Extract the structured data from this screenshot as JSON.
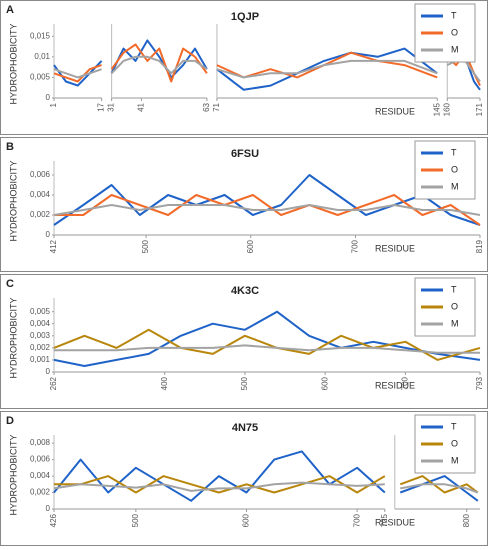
{
  "chart_data": [
    {
      "type": "line",
      "panel": "A",
      "title": "1QJP",
      "ylabel": "HYDROPHOBICITY",
      "xlabel": "RESIDUE",
      "legend": "upper right",
      "series": [
        {
          "name": "T",
          "color": "#1f63c9"
        },
        {
          "name": "O",
          "color": "#f26b2a"
        },
        {
          "name": "M",
          "color": "#a3a3a3"
        }
      ],
      "ylim": [
        0,
        0.017
      ],
      "yticks": [
        0,
        {
          "value": 0.005,
          "label": "0,005"
        },
        {
          "value": 0.01,
          "label": "0,01"
        },
        {
          "value": 0.015,
          "label": "0,015"
        }
      ],
      "segments": [
        {
          "xlim": [
            1,
            17
          ],
          "xticks": [
            1,
            17
          ],
          "x": [
            1,
            5,
            9,
            13,
            17
          ],
          "series": [
            {
              "values": [
                0.008,
                0.004,
                0.003,
                0.006,
                0.009
              ]
            },
            {
              "values": [
                0.006,
                0.005,
                0.004,
                0.007,
                0.008
              ]
            },
            {
              "values": [
                0.007,
                0.006,
                0.005,
                0.006,
                0.007
              ]
            }
          ]
        },
        {
          "xlim": [
            31,
            63
          ],
          "xticks": [
            31,
            41,
            63
          ],
          "x": [
            31,
            35,
            39,
            43,
            47,
            51,
            55,
            59,
            63
          ],
          "series": [
            {
              "values": [
                0.006,
                0.012,
                0.009,
                0.014,
                0.01,
                0.005,
                0.008,
                0.012,
                0.007
              ]
            },
            {
              "values": [
                0.007,
                0.011,
                0.013,
                0.009,
                0.012,
                0.004,
                0.012,
                0.01,
                0.006
              ]
            },
            {
              "values": [
                0.006,
                0.009,
                0.01,
                0.01,
                0.009,
                0.006,
                0.009,
                0.009,
                0.007
              ]
            }
          ]
        },
        {
          "xlim": [
            71,
            145
          ],
          "xticks": [
            71,
            145
          ],
          "x": [
            71,
            80,
            89,
            98,
            107,
            116,
            125,
            134,
            145
          ],
          "series": [
            {
              "values": [
                0.007,
                0.002,
                0.003,
                0.006,
                0.009,
                0.011,
                0.01,
                0.012,
                0.006
              ]
            },
            {
              "values": [
                0.008,
                0.005,
                0.007,
                0.005,
                0.008,
                0.011,
                0.009,
                0.008,
                0.005
              ]
            },
            {
              "values": [
                0.007,
                0.005,
                0.006,
                0.006,
                0.008,
                0.009,
                0.009,
                0.009,
                0.006
              ]
            }
          ]
        },
        {
          "xlim": [
            160,
            171
          ],
          "xticks": [
            160,
            171
          ],
          "x": [
            160,
            163,
            166,
            169,
            171
          ],
          "series": [
            {
              "values": [
                0.009,
                0.011,
                0.01,
                0.004,
                0.002
              ]
            },
            {
              "values": [
                0.01,
                0.008,
                0.011,
                0.006,
                0.003
              ]
            },
            {
              "values": [
                0.008,
                0.009,
                0.009,
                0.006,
                0.004
              ]
            }
          ]
        }
      ]
    },
    {
      "type": "line",
      "panel": "B",
      "title": "6FSU",
      "ylabel": "HYDROPHOBICITY",
      "xlabel": "RESIDUE",
      "legend": "upper right",
      "series": [
        {
          "name": "T",
          "color": "#1f63c9"
        },
        {
          "name": "O",
          "color": "#f26b2a"
        },
        {
          "name": "M",
          "color": "#a3a3a3"
        }
      ],
      "ylim": [
        0,
        0.007
      ],
      "yticks": [
        0,
        {
          "value": 0.002,
          "label": "0,002"
        },
        {
          "value": 0.004,
          "label": "0,004"
        },
        {
          "value": 0.006,
          "label": "0,006"
        }
      ],
      "segments": [
        {
          "xlim": [
            412,
            819
          ],
          "xticks": [
            412,
            500,
            600,
            700,
            819
          ],
          "x": [
            412,
            440,
            467,
            494,
            521,
            548,
            575,
            602,
            629,
            656,
            683,
            710,
            737,
            764,
            791,
            819
          ],
          "series": [
            {
              "values": [
                0.001,
                0.003,
                0.005,
                0.002,
                0.004,
                0.003,
                0.004,
                0.002,
                0.003,
                0.006,
                0.004,
                0.002,
                0.003,
                0.004,
                0.002,
                0.001
              ]
            },
            {
              "values": [
                0.002,
                0.002,
                0.004,
                0.003,
                0.002,
                0.004,
                0.003,
                0.004,
                0.002,
                0.003,
                0.002,
                0.003,
                0.004,
                0.002,
                0.003,
                0.001
              ]
            },
            {
              "values": [
                0.002,
                0.0025,
                0.003,
                0.0025,
                0.003,
                0.003,
                0.003,
                0.0025,
                0.0025,
                0.003,
                0.0025,
                0.0025,
                0.003,
                0.0025,
                0.0025,
                0.002
              ]
            }
          ]
        }
      ]
    },
    {
      "type": "line",
      "panel": "C",
      "title": "4K3C",
      "ylabel": "HYDROPHOBICITY",
      "xlabel": "RESIDUE",
      "legend": "upper right",
      "series": [
        {
          "name": "T",
          "color": "#1f63c9"
        },
        {
          "name": "O",
          "color": "#b8860b"
        },
        {
          "name": "M",
          "color": "#a3a3a3"
        }
      ],
      "ylim": [
        0,
        0.0058
      ],
      "yticks": [
        0,
        {
          "value": 0.001,
          "label": "0,001"
        },
        {
          "value": 0.002,
          "label": "0,002"
        },
        {
          "value": 0.003,
          "label": "0,003"
        },
        {
          "value": 0.004,
          "label": "0,004"
        },
        {
          "value": 0.005,
          "label": "0,005"
        }
      ],
      "segments": [
        {
          "xlim": [
            262,
            793
          ],
          "xticks": [
            262,
            400,
            500,
            600,
            700,
            793
          ],
          "x": [
            262,
            300,
            340,
            380,
            420,
            460,
            500,
            540,
            580,
            620,
            660,
            700,
            740,
            793
          ],
          "series": [
            {
              "values": [
                0.001,
                0.0005,
                0.001,
                0.0015,
                0.003,
                0.004,
                0.0035,
                0.005,
                0.003,
                0.002,
                0.0025,
                0.002,
                0.0015,
                0.001
              ]
            },
            {
              "values": [
                0.002,
                0.003,
                0.002,
                0.0035,
                0.002,
                0.0015,
                0.003,
                0.002,
                0.0015,
                0.003,
                0.002,
                0.0025,
                0.001,
                0.002
              ]
            },
            {
              "values": [
                0.0018,
                0.0018,
                0.0018,
                0.002,
                0.002,
                0.002,
                0.0022,
                0.002,
                0.0018,
                0.002,
                0.002,
                0.0018,
                0.0016,
                0.0016
              ]
            }
          ]
        }
      ]
    },
    {
      "type": "line",
      "panel": "D",
      "title": "4N75",
      "ylabel": "HYDROPHOBICITY",
      "xlabel": "RESIDUE",
      "legend": "upper right",
      "series": [
        {
          "name": "T",
          "color": "#1f63c9"
        },
        {
          "name": "O",
          "color": "#b8860b"
        },
        {
          "name": "M",
          "color": "#a3a3a3"
        }
      ],
      "ylim": [
        0,
        0.0085
      ],
      "yticks": [
        0,
        {
          "value": 0.002,
          "label": "0,002"
        },
        {
          "value": 0.004,
          "label": "0,004"
        },
        {
          "value": 0.006,
          "label": "0,006"
        },
        {
          "value": 0.008,
          "label": "0,008"
        }
      ],
      "segments": [
        {
          "xlim": [
            426,
            725
          ],
          "xticks": [
            426,
            500,
            600,
            700,
            725
          ],
          "x": [
            426,
            450,
            475,
            500,
            525,
            550,
            575,
            600,
            625,
            650,
            675,
            700,
            725
          ],
          "series": [
            {
              "values": [
                0.002,
                0.006,
                0.002,
                0.005,
                0.003,
                0.001,
                0.004,
                0.002,
                0.006,
                0.007,
                0.003,
                0.005,
                0.002
              ]
            },
            {
              "values": [
                0.003,
                0.003,
                0.004,
                0.002,
                0.004,
                0.003,
                0.002,
                0.003,
                0.002,
                0.003,
                0.004,
                0.002,
                0.004
              ]
            },
            {
              "values": [
                0.0025,
                0.003,
                0.0028,
                0.0026,
                0.003,
                0.0022,
                0.0025,
                0.0025,
                0.003,
                0.0032,
                0.003,
                0.0028,
                0.003
              ]
            }
          ]
        },
        {
          "xlim": [
            735,
            812
          ],
          "xticks": [
            800
          ],
          "x": [
            740,
            760,
            780,
            800,
            810
          ],
          "series": [
            {
              "values": [
                0.002,
                0.003,
                0.004,
                0.002,
                0.001
              ]
            },
            {
              "values": [
                0.003,
                0.004,
                0.002,
                0.003,
                0.002
              ]
            },
            {
              "values": [
                0.0025,
                0.003,
                0.003,
                0.0025,
                0.002
              ]
            }
          ]
        }
      ]
    }
  ]
}
